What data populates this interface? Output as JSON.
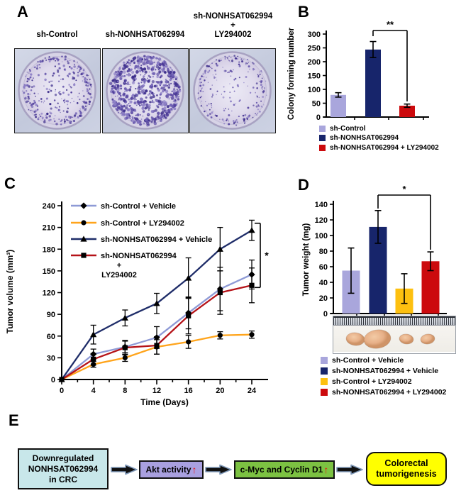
{
  "panel_labels": {
    "a": "A",
    "b": "B",
    "c": "C",
    "d": "D",
    "e": "E"
  },
  "panel_a": {
    "dishes": [
      {
        "label_lines": [
          "sh-Control"
        ],
        "colony_density": "medium"
      },
      {
        "label_lines": [
          "sh-NONHSAT062994"
        ],
        "colony_density": "high"
      },
      {
        "label_lines": [
          "sh-NONHSAT062994",
          "+",
          "LY294002"
        ],
        "colony_density": "low"
      }
    ],
    "colony_color": "#4a3a96",
    "dish_fill": "#dcd8e9"
  },
  "chart_data": [
    {
      "id": "colony_forming",
      "type": "bar",
      "title": "",
      "ylabel": "Colony forming number",
      "ylim": [
        0,
        300
      ],
      "ytick_step": 50,
      "categories": [
        "sh-Control",
        "sh-NONHSAT062994",
        "sh-NONHSAT062994 + LY294002"
      ],
      "values": [
        80,
        244,
        41
      ],
      "errors": [
        8,
        29,
        6
      ],
      "colors": [
        "#a9a6dc",
        "#17256b",
        "#cc0a0d"
      ],
      "significance": {
        "label": "**",
        "from": 1,
        "to": 2
      },
      "legend_position": "bottom"
    },
    {
      "id": "tumor_volume",
      "type": "line",
      "title": "",
      "xlabel": "Time (Days)",
      "ylabel": "Tumor volume (mm³)",
      "x": [
        0,
        4,
        8,
        12,
        16,
        20,
        24
      ],
      "xlim": [
        0,
        24
      ],
      "ylim": [
        0,
        240
      ],
      "ytick_step": 30,
      "grid": false,
      "legend_position": "top-left-inside",
      "series": [
        {
          "name": "sh-Control + Vehicle",
          "name_lines": [
            "sh-Control + Vehicle"
          ],
          "color": "#8e9ad6",
          "marker": "diamond",
          "values": [
            0,
            35,
            45,
            58,
            92,
            125,
            145
          ],
          "errors": [
            0,
            7,
            8,
            15,
            22,
            30,
            20
          ]
        },
        {
          "name": "sh-Control + LY294002",
          "name_lines": [
            "sh-Control + LY294002"
          ],
          "color": "#ffa41b",
          "marker": "circle",
          "values": [
            0,
            21,
            30,
            45,
            52,
            61,
            62
          ],
          "errors": [
            0,
            4,
            5,
            10,
            9,
            5,
            5
          ]
        },
        {
          "name": "sh-NONHSAT062994 + Vehicle",
          "name_lines": [
            "sh-NONHSAT062994 + Vehicle"
          ],
          "color": "#1f2d69",
          "marker": "triangle",
          "values": [
            0,
            62,
            85,
            105,
            140,
            180,
            206
          ],
          "errors": [
            0,
            13,
            11,
            14,
            28,
            30,
            14
          ]
        },
        {
          "name": "sh-NONHSAT062994 + LY294002",
          "name_lines": [
            "sh-NONHSAT062994",
            "+",
            "LY294002"
          ],
          "color": "#b51218",
          "marker": "square",
          "values": [
            0,
            28,
            44,
            47,
            88,
            120,
            130
          ],
          "errors": [
            0,
            8,
            10,
            12,
            25,
            30,
            24
          ]
        }
      ],
      "significance": {
        "label": "*",
        "at_x": 24,
        "between": [
          "sh-NONHSAT062994 + Vehicle",
          "sh-NONHSAT062994 + LY294002"
        ]
      }
    },
    {
      "id": "tumor_weight",
      "type": "bar",
      "title": "",
      "ylabel": "Tumor weight (mg)",
      "ylim": [
        0,
        140
      ],
      "ytick_step": 20,
      "categories": [
        "sh-Control + Vehicle",
        "sh-NONHSAT062994 + Vehicle",
        "sh-Control + LY294002",
        "sh-NONHSAT062994 + LY294002"
      ],
      "values": [
        55,
        111,
        32,
        67
      ],
      "errors": [
        29,
        21,
        19,
        12
      ],
      "colors": [
        "#a9a6dc",
        "#17256b",
        "#fdc010",
        "#cc0a0d"
      ],
      "significance": {
        "label": "*",
        "from": 1,
        "to": 3
      },
      "legend_position": "bottom"
    }
  ],
  "panel_d_photo": {
    "ruler_present": true,
    "tumor_relative_sizes": [
      "medium",
      "large",
      "small",
      "small"
    ],
    "tumor_color": "#e7b088"
  },
  "panel_e": {
    "boxes": [
      {
        "lines": [
          "Downregulated",
          "NONHSAT062994",
          "in CRC"
        ],
        "bg": "#c8e7ea",
        "rounded": false,
        "up_arrow": false
      },
      {
        "lines": [
          "Akt activity"
        ],
        "bg": "#a9a0e0",
        "rounded": false,
        "up_arrow": true
      },
      {
        "lines": [
          "c-Myc and Cyclin D1"
        ],
        "bg": "#7cc242",
        "rounded": false,
        "up_arrow": true
      },
      {
        "lines": [
          "Colorectal",
          "tumorigenesis"
        ],
        "bg": "#ffff00",
        "rounded": true,
        "up_arrow": false
      }
    ],
    "up_arrow_color": "#ee1111",
    "connector_fill": "#111111",
    "connector_outline": "#7f98b8"
  }
}
